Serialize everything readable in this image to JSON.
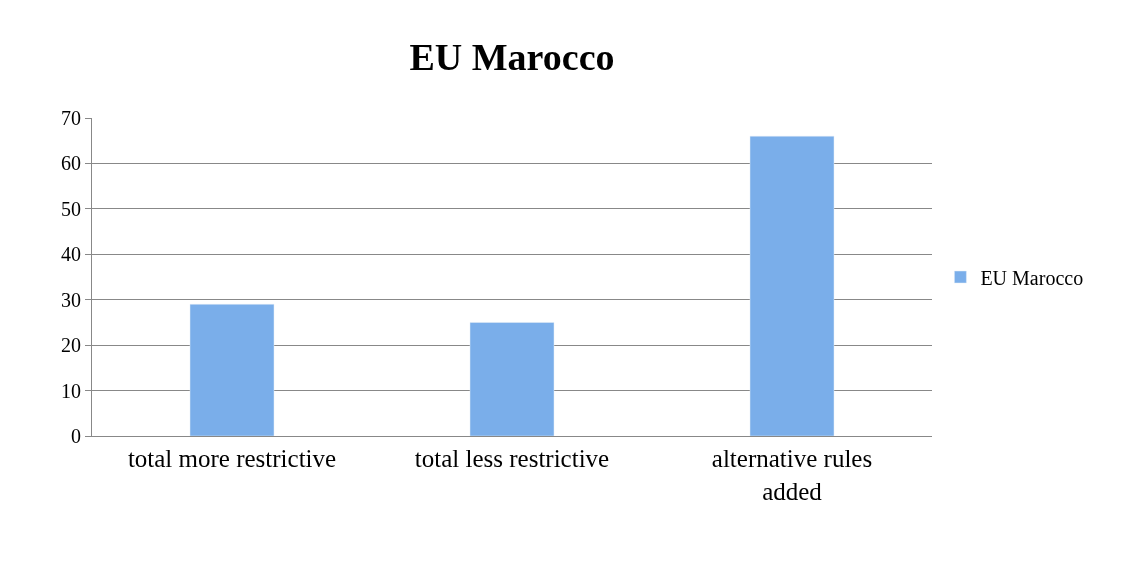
{
  "chart_data": {
    "type": "bar",
    "title": "EU Marocco",
    "categories": [
      "total more restrictive",
      "total less restrictive",
      "alternative rules added"
    ],
    "series": [
      {
        "name": "EU Marocco",
        "color": "#7aaeea",
        "values": [
          29,
          25,
          66
        ]
      }
    ],
    "ylim": [
      0,
      70
    ],
    "yticks": [
      0,
      10,
      20,
      30,
      40,
      50,
      60,
      70
    ],
    "grid": "y",
    "legend": "right"
  }
}
